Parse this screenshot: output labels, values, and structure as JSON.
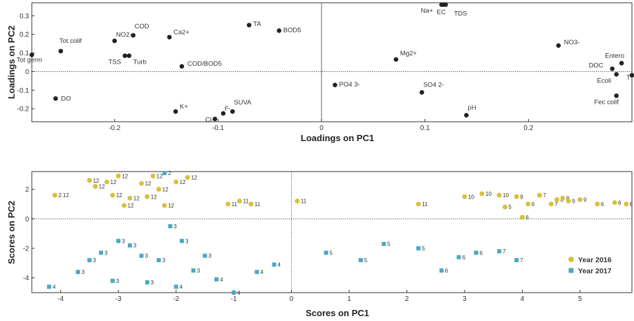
{
  "chart_data": [
    {
      "type": "scatter",
      "xlabel": "Loadings on PC1",
      "ylabel": "Loadings on PC2",
      "xlim": [
        -0.28,
        0.3
      ],
      "ylim": [
        -0.27,
        0.37
      ],
      "xticks": [
        -0.2,
        -0.1,
        0,
        0.1,
        0.2
      ],
      "xticklabels": [
        "-0.2",
        "-0.1",
        "0",
        "0.1",
        "0.2"
      ],
      "yticks": [
        -0.2,
        -0.1,
        0,
        0.1,
        0.2,
        0.3
      ],
      "yticklabels": [
        "-0.2",
        "-0.1",
        "0",
        "0.1",
        "0.2",
        "0.3"
      ],
      "grid": false,
      "points": [
        {
          "label": "Tot colif",
          "x": -0.252,
          "y": 0.11
        },
        {
          "label": "Tot germ",
          "x": -0.28,
          "y": 0.09
        },
        {
          "label": "COD",
          "x": -0.182,
          "y": 0.195
        },
        {
          "label": "NO2-",
          "x": -0.2,
          "y": 0.165
        },
        {
          "label": "TSS",
          "x": -0.19,
          "y": 0.085
        },
        {
          "label": "Turb",
          "x": -0.186,
          "y": 0.085
        },
        {
          "label": "Ca2+",
          "x": -0.147,
          "y": 0.185
        },
        {
          "label": "COD/BOD5",
          "x": -0.135,
          "y": 0.028
        },
        {
          "label": "TA",
          "x": -0.07,
          "y": 0.25
        },
        {
          "label": "BOD5",
          "x": -0.041,
          "y": 0.22
        },
        {
          "label": "DO",
          "x": -0.257,
          "y": -0.145
        },
        {
          "label": "K+",
          "x": -0.141,
          "y": -0.215
        },
        {
          "label": "Cl-",
          "x": -0.103,
          "y": -0.255
        },
        {
          "label": "F-",
          "x": -0.095,
          "y": -0.225
        },
        {
          "label": "SUVA",
          "x": -0.086,
          "y": -0.215
        },
        {
          "label": "Na+",
          "x": 0.116,
          "y": 0.36
        },
        {
          "label": "EC",
          "x": 0.118,
          "y": 0.36
        },
        {
          "label": "TDS",
          "x": 0.12,
          "y": 0.36
        },
        {
          "label": "Mg2+",
          "x": 0.072,
          "y": 0.065
        },
        {
          "label": "PO4 3-",
          "x": 0.013,
          "y": -0.072
        },
        {
          "label": "SO4 2-",
          "x": 0.097,
          "y": -0.112
        },
        {
          "label": "pH",
          "x": 0.14,
          "y": -0.235
        },
        {
          "label": "NO3-",
          "x": 0.229,
          "y": 0.14
        },
        {
          "label": "Entero",
          "x": 0.29,
          "y": 0.045
        },
        {
          "label": "DOC",
          "x": 0.281,
          "y": 0.015
        },
        {
          "label": "T",
          "x": 0.3,
          "y": -0.02
        },
        {
          "label": "Ecoli",
          "x": 0.285,
          "y": -0.015
        },
        {
          "label": "Fec colif",
          "x": 0.285,
          "y": -0.13
        }
      ]
    },
    {
      "type": "scatter",
      "xlabel": "Scores on PC1",
      "ylabel": "Scores on PC2",
      "xlim": [
        -4.5,
        5.9
      ],
      "ylim": [
        -5,
        3.2
      ],
      "xticks": [
        -4,
        -3,
        -2,
        -1,
        0,
        1,
        2,
        3,
        4,
        5
      ],
      "xticklabels": [
        "-4",
        "-3",
        "-2",
        "-1",
        "0",
        "1",
        "2",
        "3",
        "4",
        "5"
      ],
      "yticks": [
        -4,
        -2,
        0,
        2
      ],
      "yticklabels": [
        "-4",
        "-2",
        "0",
        "2"
      ],
      "grid": false,
      "legend": {
        "location": "lower-right",
        "entries": [
          "Year 2016",
          "Year 2017"
        ]
      },
      "series": [
        {
          "name": "Year 2016",
          "color": "#d6c23a",
          "points": [
            {
              "x": -4.1,
              "y": 1.6,
              "label": "2.12"
            },
            {
              "x": -3.5,
              "y": 2.6,
              "label": "12"
            },
            {
              "x": -3.4,
              "y": 2.2,
              "label": "12"
            },
            {
              "x": -3.2,
              "y": 2.5,
              "label": "12"
            },
            {
              "x": -3.1,
              "y": 1.6,
              "label": "12"
            },
            {
              "x": -3.0,
              "y": 2.9,
              "label": "12"
            },
            {
              "x": -2.9,
              "y": 0.9,
              "label": "12"
            },
            {
              "x": -2.8,
              "y": 1.4,
              "label": "12"
            },
            {
              "x": -2.6,
              "y": 2.4,
              "label": "12"
            },
            {
              "x": -2.5,
              "y": 1.5,
              "label": "12"
            },
            {
              "x": -2.4,
              "y": 2.9,
              "label": "12"
            },
            {
              "x": -2.3,
              "y": 2.0,
              "label": "12"
            },
            {
              "x": -2.2,
              "y": 0.9,
              "label": "12"
            },
            {
              "x": -2.0,
              "y": 2.5,
              "label": "12"
            },
            {
              "x": -1.8,
              "y": 2.8,
              "label": "12"
            },
            {
              "x": -1.1,
              "y": 1.0,
              "label": "11"
            },
            {
              "x": -0.9,
              "y": 1.2,
              "label": "11"
            },
            {
              "x": -0.7,
              "y": 1.0,
              "label": "11"
            },
            {
              "x": 0.1,
              "y": 1.2,
              "label": "11"
            },
            {
              "x": 2.2,
              "y": 1.0,
              "label": "11"
            },
            {
              "x": 3.0,
              "y": 1.5,
              "label": "10"
            },
            {
              "x": 3.3,
              "y": 1.7,
              "label": "10"
            },
            {
              "x": 3.6,
              "y": 1.6,
              "label": "10"
            },
            {
              "x": 3.7,
              "y": 0.8,
              "label": "5"
            },
            {
              "x": 3.9,
              "y": 1.5,
              "label": "9"
            },
            {
              "x": 4.0,
              "y": 0.1,
              "label": "6"
            },
            {
              "x": 4.1,
              "y": 1.0,
              "label": "6"
            },
            {
              "x": 4.3,
              "y": 1.6,
              "label": "7"
            },
            {
              "x": 4.5,
              "y": 1.0,
              "label": "7"
            },
            {
              "x": 4.6,
              "y": 1.3,
              "label": "8"
            },
            {
              "x": 4.7,
              "y": 1.4,
              "label": "8"
            },
            {
              "x": 4.8,
              "y": 1.2,
              "label": "9"
            },
            {
              "x": 5.0,
              "y": 1.3,
              "label": "9"
            },
            {
              "x": 5.3,
              "y": 1.0,
              "label": "6"
            },
            {
              "x": 5.6,
              "y": 1.1,
              "label": "6"
            },
            {
              "x": 5.8,
              "y": 1.0,
              "label": "6"
            }
          ]
        },
        {
          "name": "Year 2017",
          "color": "#4aa8c4",
          "points": [
            {
              "x": -4.2,
              "y": -4.6,
              "label": "4"
            },
            {
              "x": -3.7,
              "y": -3.6,
              "label": "3"
            },
            {
              "x": -3.5,
              "y": -2.8,
              "label": "3"
            },
            {
              "x": -3.3,
              "y": -2.3,
              "label": "3"
            },
            {
              "x": -3.1,
              "y": -4.2,
              "label": "3"
            },
            {
              "x": -3.0,
              "y": -1.5,
              "label": "3"
            },
            {
              "x": -2.8,
              "y": -1.8,
              "label": "3"
            },
            {
              "x": -2.6,
              "y": -2.5,
              "label": "3"
            },
            {
              "x": -2.5,
              "y": -4.3,
              "label": "3"
            },
            {
              "x": -2.3,
              "y": -2.8,
              "label": "3"
            },
            {
              "x": -2.2,
              "y": 3.1,
              "label": "2"
            },
            {
              "x": -2.1,
              "y": -0.5,
              "label": "3"
            },
            {
              "x": -2.0,
              "y": -4.6,
              "label": "4"
            },
            {
              "x": -1.9,
              "y": -1.5,
              "label": "3"
            },
            {
              "x": -1.7,
              "y": -3.5,
              "label": "3"
            },
            {
              "x": -1.5,
              "y": -2.5,
              "label": "3"
            },
            {
              "x": -1.3,
              "y": -4.1,
              "label": "4"
            },
            {
              "x": -1.0,
              "y": -5.0,
              "label": "4"
            },
            {
              "x": -0.6,
              "y": -3.6,
              "label": "4"
            },
            {
              "x": -0.3,
              "y": -3.1,
              "label": "4"
            },
            {
              "x": 0.6,
              "y": -2.3,
              "label": "5"
            },
            {
              "x": 1.2,
              "y": -2.8,
              "label": "5"
            },
            {
              "x": 1.6,
              "y": -1.7,
              "label": "5"
            },
            {
              "x": 2.2,
              "y": -2.0,
              "label": "5"
            },
            {
              "x": 2.6,
              "y": -3.5,
              "label": "6"
            },
            {
              "x": 2.9,
              "y": -2.6,
              "label": "6"
            },
            {
              "x": 3.2,
              "y": -2.3,
              "label": "6"
            },
            {
              "x": 3.6,
              "y": -2.2,
              "label": "7"
            },
            {
              "x": 3.9,
              "y": -2.8,
              "label": "7"
            }
          ]
        }
      ]
    }
  ]
}
